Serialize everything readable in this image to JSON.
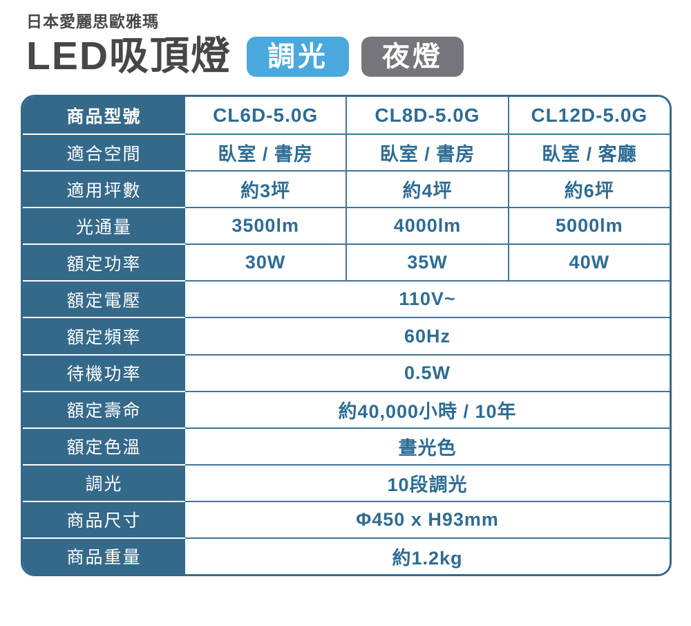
{
  "header": {
    "brand": "日本愛麗思歐雅瑪",
    "title": "LED吸頂燈",
    "badges": [
      {
        "label": "調光"
      },
      {
        "label": "夜燈"
      }
    ]
  },
  "table": {
    "rows": [
      {
        "label": "商品型號",
        "values": [
          "CL6D-5.0G",
          "CL8D-5.0G",
          "CL12D-5.0G"
        ]
      },
      {
        "label": "適合空間",
        "values": [
          "臥室 / 書房",
          "臥室 / 書房",
          "臥室 / 客廳"
        ]
      },
      {
        "label": "適用坪數",
        "values": [
          "約3坪",
          "約4坪",
          "約6坪"
        ]
      },
      {
        "label": "光通量",
        "values": [
          "3500lm",
          "4000lm",
          "5000lm"
        ]
      },
      {
        "label": "額定功率",
        "values": [
          "30W",
          "35W",
          "40W"
        ]
      },
      {
        "label": "額定電壓",
        "span": "110V~"
      },
      {
        "label": "額定頻率",
        "span": "60Hz"
      },
      {
        "label": "待機功率",
        "span": "0.5W"
      },
      {
        "label": "額定壽命",
        "span": "約40,000小時 / 10年"
      },
      {
        "label": "額定色溫",
        "span": "晝光色"
      },
      {
        "label": "調光",
        "span": "10段調光"
      },
      {
        "label": "商品尺寸",
        "span": "Φ450 x H93mm"
      },
      {
        "label": "商品重量",
        "span": "約1.2kg"
      }
    ]
  },
  "colors": {
    "badge_dimming": "#4aa8dd",
    "badge_night": "#76767a",
    "table_teal": "#35698a",
    "value_text": "#2d6c94",
    "grid_line": "#3f7596",
    "title_text": "#474747"
  }
}
